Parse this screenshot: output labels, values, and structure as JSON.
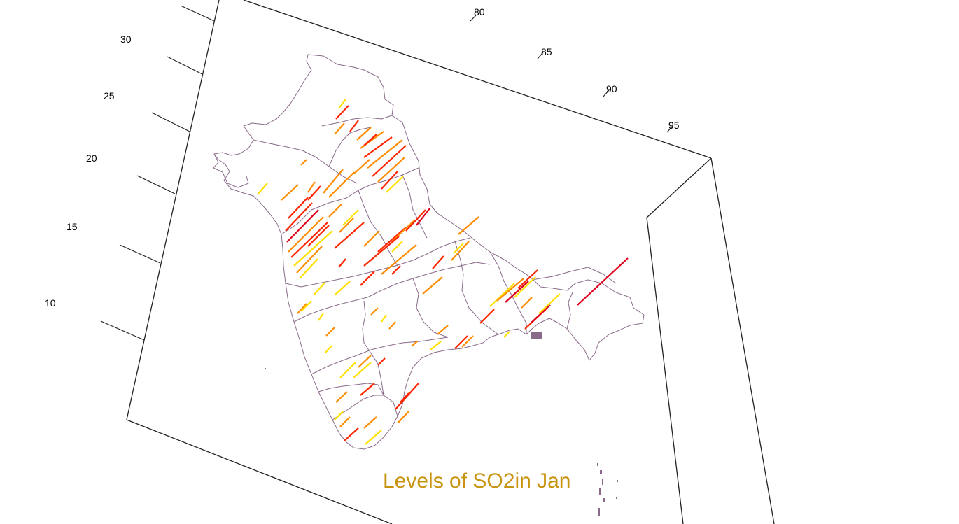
{
  "title": "Levels of SO2in Jan",
  "colors": {
    "title": "#c89410",
    "boundary": "#8a6a8a",
    "frame": "#222222",
    "low": "#ffe000",
    "mid": "#ff8c00",
    "high": "#ff2400",
    "peak": "#e0001a"
  },
  "axes": {
    "lat_ticks": [
      "30",
      "25",
      "20",
      "15",
      "10"
    ],
    "lon_ticks": [
      "80",
      "85",
      "90",
      "95"
    ]
  },
  "chart_data": {
    "type": "3d-spike-map",
    "title": "Levels of SO2in Jan",
    "lat_ticks": [
      30,
      25,
      20,
      15,
      10
    ],
    "lon_ticks": [
      80,
      85,
      90,
      95
    ],
    "levels": [
      "low",
      "mid",
      "high",
      "peak"
    ]
  }
}
